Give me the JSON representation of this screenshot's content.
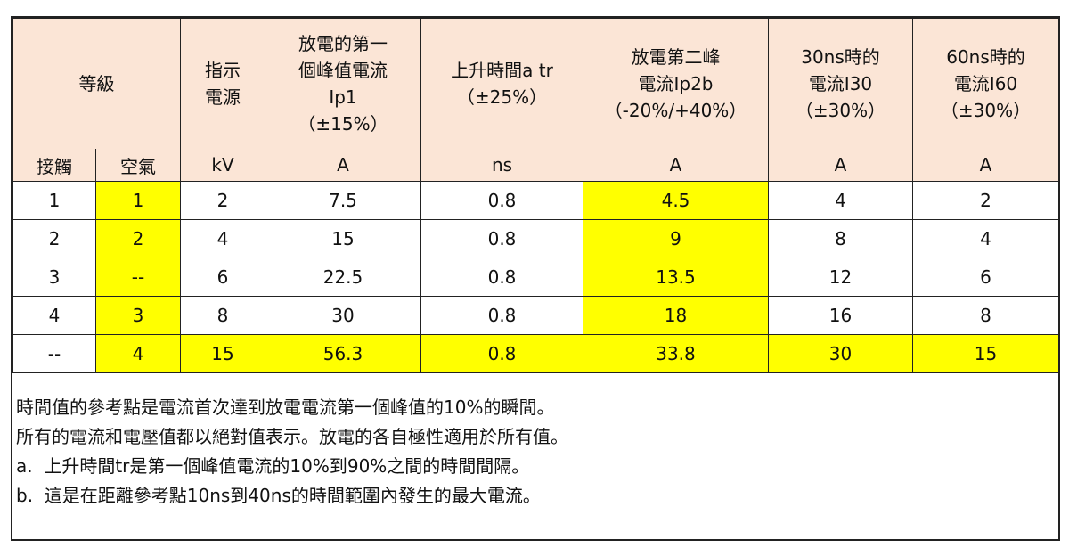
{
  "table": {
    "header": [
      {
        "lines": [
          "等級"
        ]
      },
      {
        "lines": [
          "指示",
          "電源"
        ]
      },
      {
        "lines": [
          "放電的第一",
          "個峰值電流",
          "Ip1",
          "（±15%）"
        ]
      },
      {
        "lines": [
          "上升時間a tr",
          "（±25%）"
        ]
      },
      {
        "lines": [
          "放電第二峰",
          "電流Ip2b",
          "（-20%/+40%）"
        ]
      },
      {
        "lines": [
          "30ns時的",
          "電流I30",
          "（±30%）"
        ]
      },
      {
        "lines": [
          "60ns時的",
          "電流I60",
          "（±30%）"
        ]
      }
    ],
    "units": [
      "接觸",
      "空氣",
      "kV",
      "A",
      "ns",
      "A",
      "A",
      "A"
    ],
    "rows": [
      [
        "1",
        "1",
        "2",
        "7.5",
        "0.8",
        "4.5",
        "4",
        "2"
      ],
      [
        "2",
        "2",
        "4",
        "15",
        "0.8",
        "9",
        "8",
        "4"
      ],
      [
        "3",
        "--",
        "6",
        "22.5",
        "0.8",
        "13.5",
        "12",
        "6"
      ],
      [
        "4",
        "3",
        "8",
        "30",
        "0.8",
        "18",
        "16",
        "8"
      ],
      [
        "--",
        "4",
        "15",
        "56.3",
        "0.8",
        "33.8",
        "30",
        "15"
      ]
    ]
  },
  "notes": [
    "時間值的參考點是電流首次達到放電電流第一個峰值的10%的瞬間。",
    "所有的電流和電壓值都以絕對值表示。放電的各自極性適用於所有值。",
    "a.  上升時間tr是第一個峰值電流的10%到90%之間的時間間隔。",
    "b.  這是在距離參考點10ns到40ns的時間範圍內發生的最大電流。"
  ]
}
